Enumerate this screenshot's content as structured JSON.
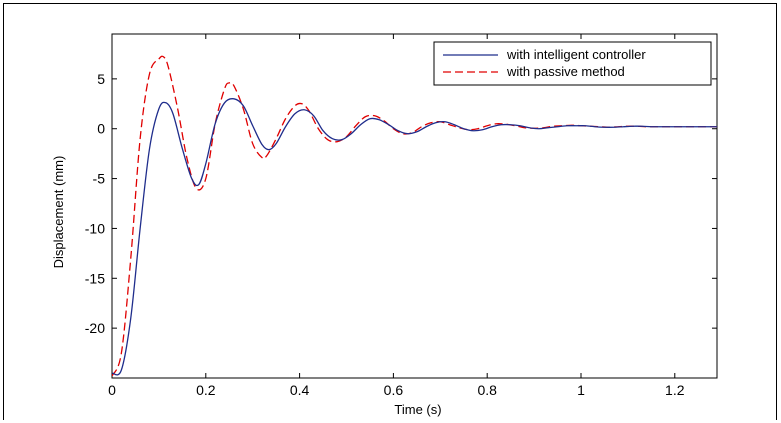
{
  "chart_data": {
    "type": "line",
    "xlabel": "Time (s)",
    "ylabel": "Displacement (mm)",
    "xlim": [
      0,
      1.29
    ],
    "ylim": [
      -25,
      9.5
    ],
    "xticks": [
      0,
      0.2,
      0.4,
      0.6,
      0.8,
      1,
      1.2
    ],
    "xtick_labels": [
      "0",
      "0.2",
      "0.4",
      "0.6",
      "0.8",
      "1",
      "1.2"
    ],
    "yticks": [
      -20,
      -15,
      -10,
      -5,
      0,
      5
    ],
    "ytick_labels": [
      "-20",
      "-15",
      "-10",
      "-5",
      "0",
      "5"
    ],
    "grid": false,
    "legend_position": "top-right",
    "series": [
      {
        "name": "with intelligent controller",
        "color": "#1f2d8c",
        "style": "solid",
        "x": [
          0,
          0.02,
          0.04,
          0.06,
          0.08,
          0.1,
          0.115,
          0.13,
          0.15,
          0.17,
          0.185,
          0.2,
          0.22,
          0.24,
          0.26,
          0.28,
          0.3,
          0.32,
          0.335,
          0.35,
          0.37,
          0.39,
          0.41,
          0.43,
          0.45,
          0.47,
          0.49,
          0.51,
          0.53,
          0.55,
          0.57,
          0.59,
          0.61,
          0.63,
          0.65,
          0.67,
          0.69,
          0.71,
          0.73,
          0.75,
          0.77,
          0.79,
          0.81,
          0.83,
          0.85,
          0.87,
          0.89,
          0.91,
          0.93,
          0.95,
          0.97,
          0.99,
          1.01,
          1.03,
          1.05,
          1.07,
          1.09,
          1.11,
          1.13,
          1.15,
          1.17,
          1.19,
          1.21,
          1.23,
          1.25,
          1.27,
          1.29
        ],
        "y": [
          -24.5,
          -24.2,
          -19.0,
          -10.0,
          -2.0,
          2.0,
          2.6,
          1.5,
          -2.0,
          -5.0,
          -5.6,
          -3.5,
          0.5,
          2.6,
          3.0,
          2.3,
          0.3,
          -1.6,
          -2.1,
          -1.5,
          0.2,
          1.5,
          1.9,
          1.3,
          -0.2,
          -1.0,
          -1.1,
          -0.5,
          0.4,
          1.0,
          0.9,
          0.4,
          -0.2,
          -0.5,
          -0.3,
          0.2,
          0.6,
          0.7,
          0.4,
          0.0,
          -0.2,
          -0.1,
          0.2,
          0.4,
          0.4,
          0.3,
          0.1,
          0.0,
          0.1,
          0.2,
          0.3,
          0.3,
          0.3,
          0.2,
          0.15,
          0.15,
          0.2,
          0.25,
          0.25,
          0.2,
          0.2,
          0.2,
          0.2,
          0.2,
          0.2,
          0.2,
          0.2
        ]
      },
      {
        "name": "with passive method",
        "color": "#e00000",
        "style": "dashed",
        "x": [
          0,
          0.02,
          0.04,
          0.06,
          0.08,
          0.1,
          0.11,
          0.12,
          0.14,
          0.16,
          0.18,
          0.2,
          0.22,
          0.24,
          0.25,
          0.26,
          0.28,
          0.3,
          0.32,
          0.33,
          0.35,
          0.37,
          0.39,
          0.405,
          0.42,
          0.44,
          0.46,
          0.48,
          0.5,
          0.52,
          0.54,
          0.56,
          0.58,
          0.6,
          0.62,
          0.64,
          0.66,
          0.68,
          0.7,
          0.72,
          0.74,
          0.76,
          0.78,
          0.8,
          0.82,
          0.84,
          0.86,
          0.88,
          0.9,
          0.92,
          0.94,
          0.96,
          0.98,
          1.0,
          1.02,
          1.04,
          1.06,
          1.08,
          1.1,
          1.12,
          1.14,
          1.16,
          1.18,
          1.2,
          1.22,
          1.24,
          1.26,
          1.29
        ],
        "y": [
          -24.8,
          -22.5,
          -13.0,
          -1.0,
          5.5,
          7.0,
          7.2,
          6.2,
          2.0,
          -3.0,
          -6.0,
          -5.0,
          0.5,
          4.0,
          4.6,
          4.3,
          2.0,
          -1.5,
          -2.9,
          -2.7,
          -1.0,
          1.0,
          2.3,
          2.5,
          1.8,
          0.0,
          -1.1,
          -1.3,
          -0.8,
          0.3,
          1.2,
          1.3,
          0.8,
          0.0,
          -0.5,
          -0.4,
          0.2,
          0.6,
          0.7,
          0.4,
          0.1,
          -0.1,
          0.0,
          0.3,
          0.5,
          0.45,
          0.3,
          0.1,
          0.05,
          0.1,
          0.25,
          0.3,
          0.35,
          0.3,
          0.25,
          0.2,
          0.15,
          0.2,
          0.25,
          0.25,
          0.2,
          0.2,
          0.2,
          0.2,
          0.2,
          0.2,
          0.2,
          0.2
        ]
      }
    ]
  }
}
